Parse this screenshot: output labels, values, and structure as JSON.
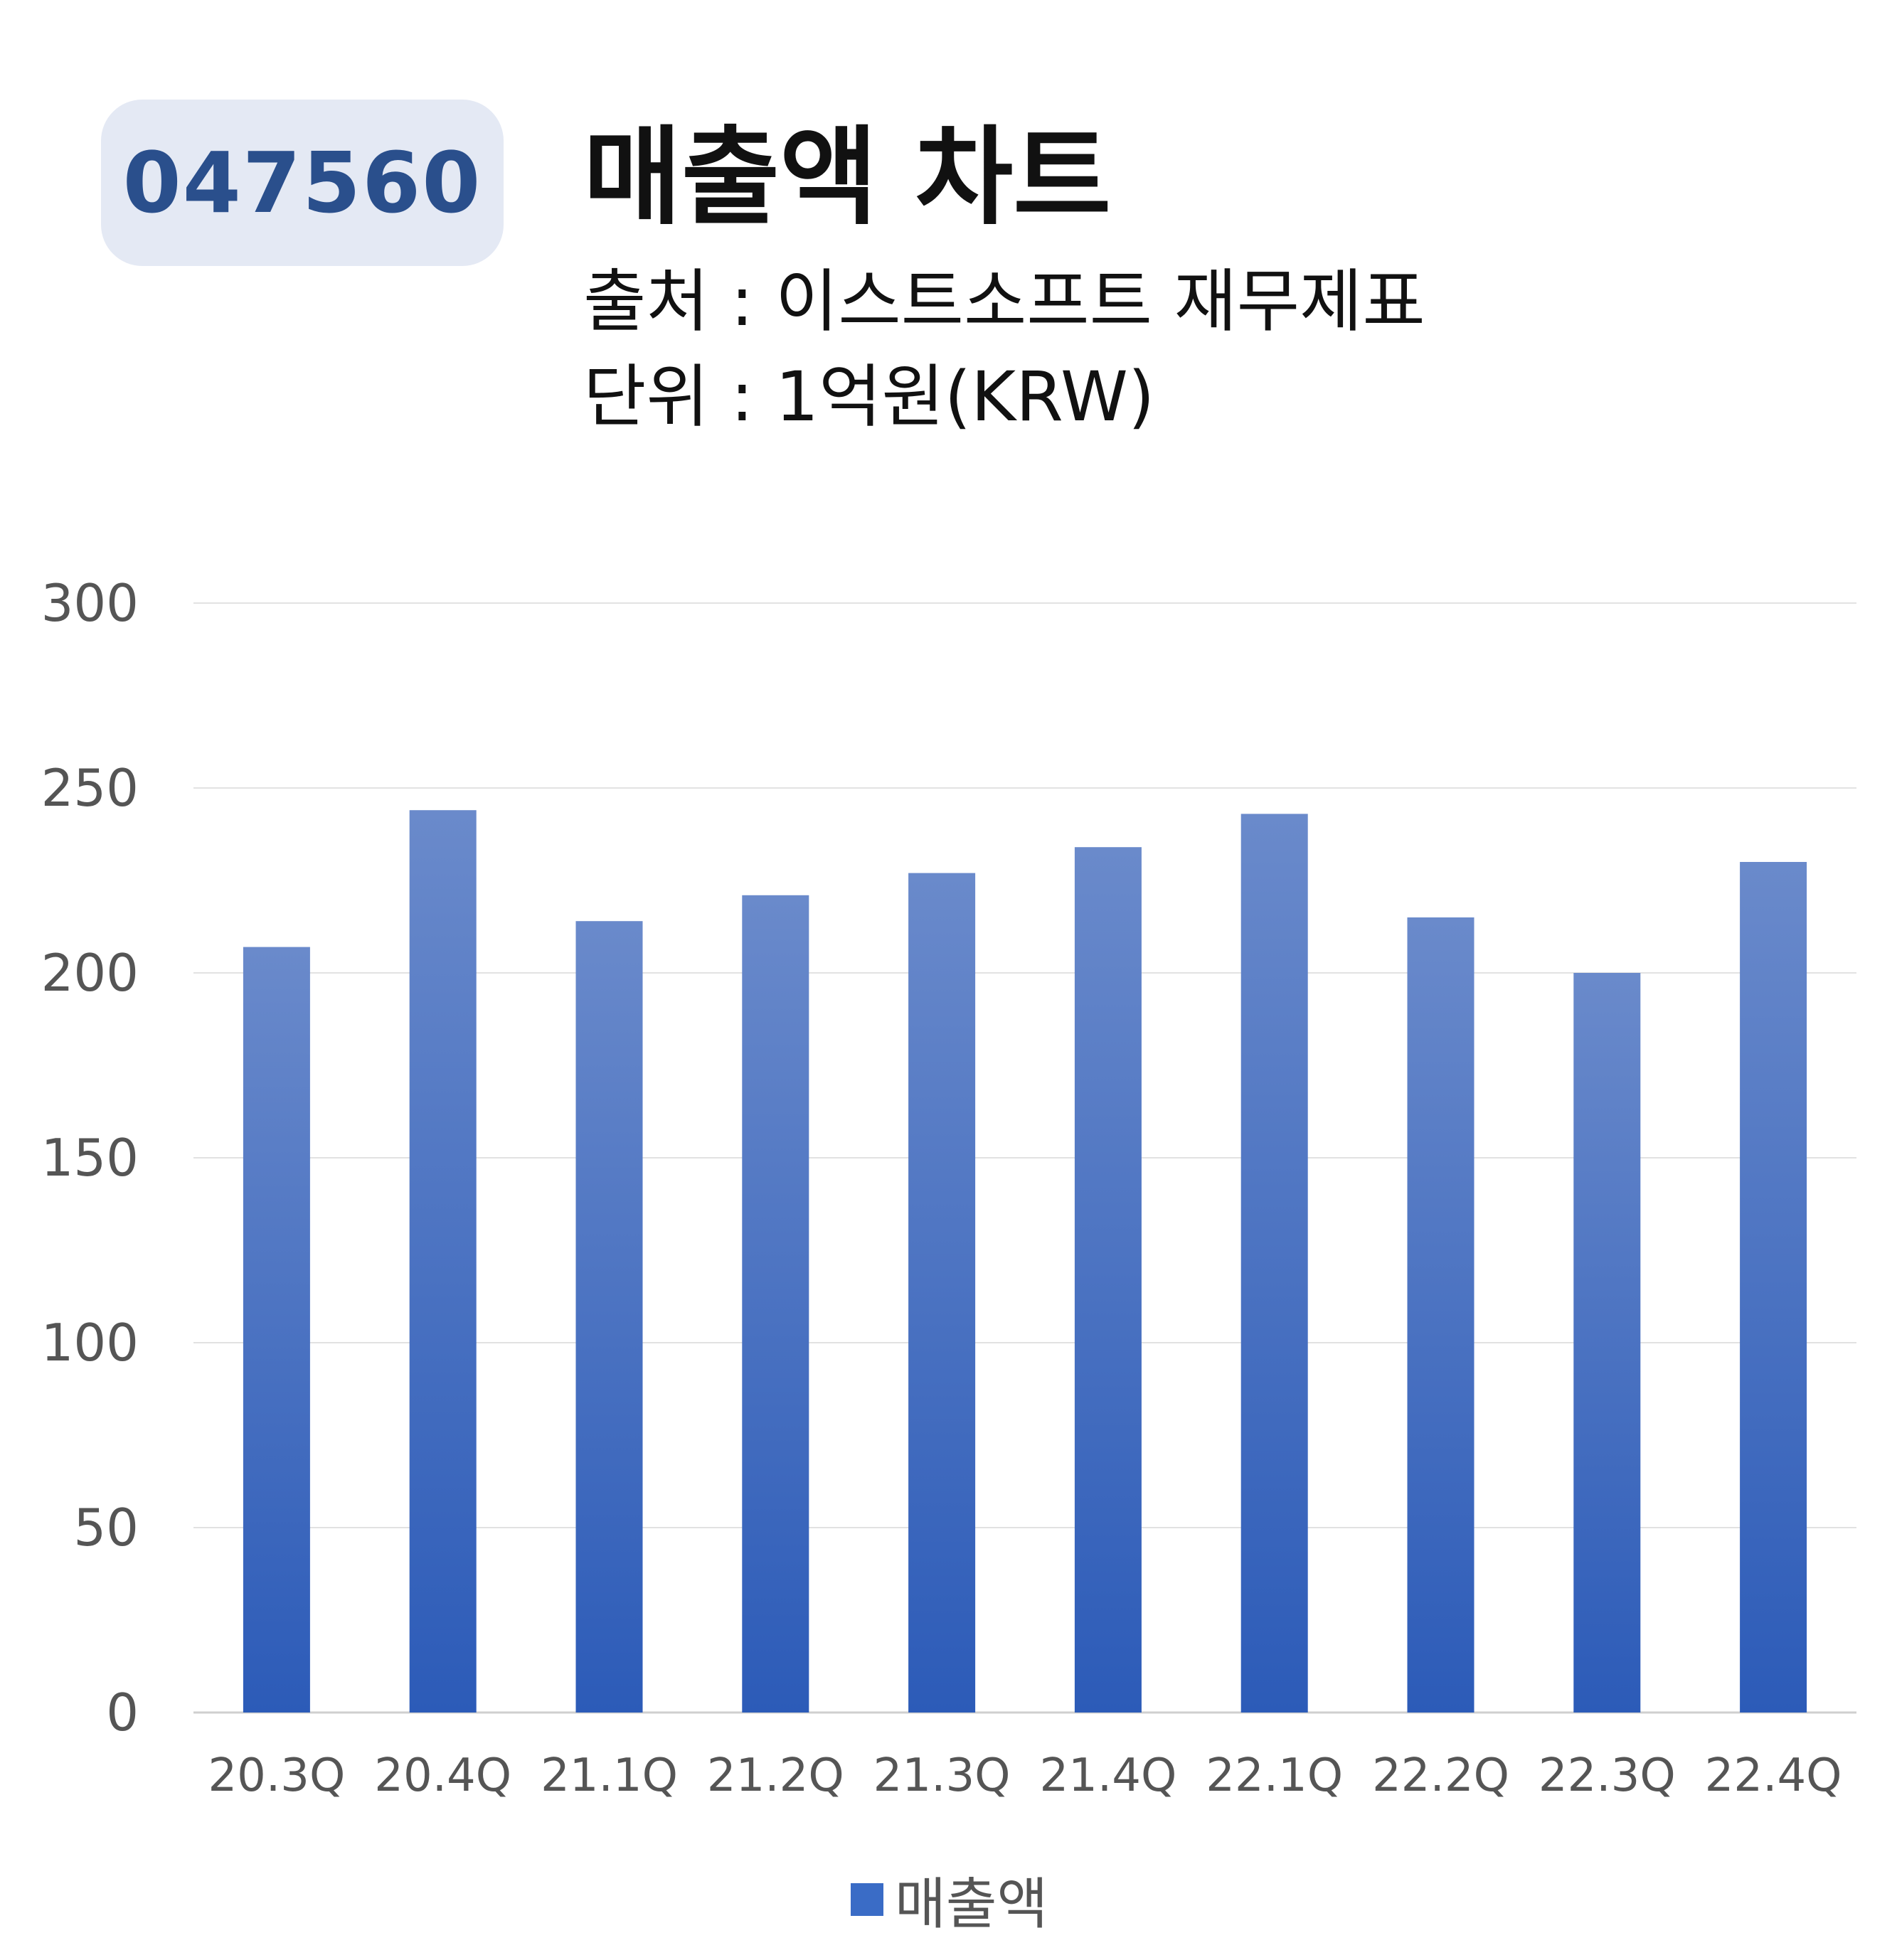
{
  "header": {
    "code": "047560",
    "title": "매출액 차트",
    "source": "출처 : 이스트소프트 재무제표",
    "unit": "단위 : 1억원(KRW)"
  },
  "colors": {
    "bar_top": "#6a8acb",
    "bar_bottom": "#2c5bb8",
    "badge_bg": "#e4e9f4",
    "badge_text": "#2a4f8c"
  },
  "chart_data": {
    "type": "bar",
    "categories": [
      "20.3Q",
      "20.4Q",
      "21.1Q",
      "21.2Q",
      "21.3Q",
      "21.4Q",
      "22.1Q",
      "22.2Q",
      "22.3Q",
      "22.4Q"
    ],
    "series": [
      {
        "name": "매출액",
        "values": [
          207,
          244,
          214,
          221,
          227,
          234,
          243,
          215,
          200,
          230
        ]
      }
    ],
    "yticks": [
      0,
      50,
      100,
      150,
      200,
      250,
      300
    ],
    "ylim": [
      0,
      300
    ],
    "grid": true,
    "legend": "bottom"
  }
}
